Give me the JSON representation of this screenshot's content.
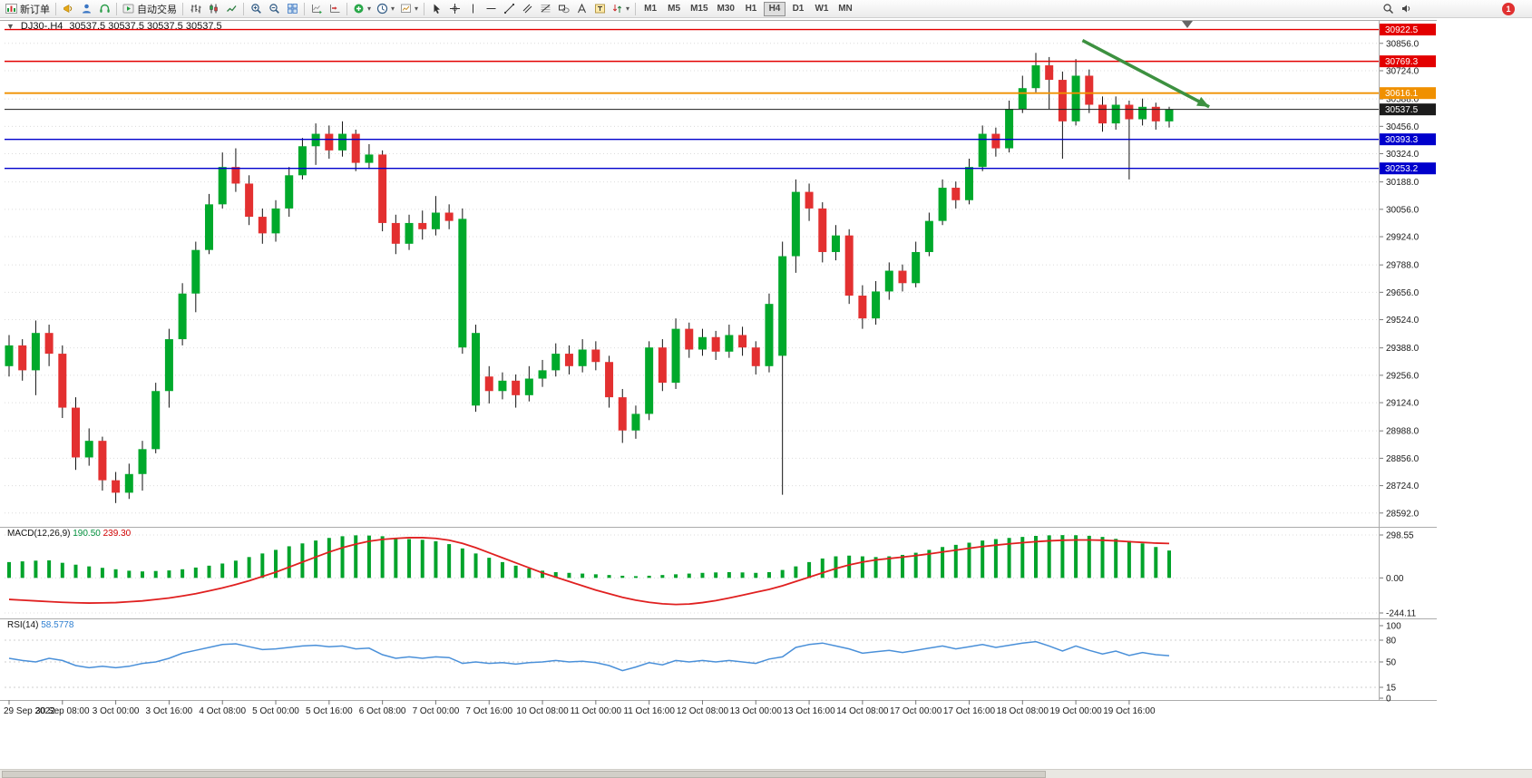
{
  "toolbar": {
    "new_order": "新订单",
    "auto_trading": "自动交易",
    "timeframes": [
      "M1",
      "M5",
      "M15",
      "M30",
      "H1",
      "H4",
      "D1",
      "W1",
      "MN"
    ],
    "active_timeframe": "H4",
    "badge_count": "1"
  },
  "icons": {
    "caret": "▾",
    "collapse": "▼"
  },
  "chart": {
    "title": "DJ30-.H4",
    "ohlc": "30537.5 30537.5 30537.5 30537.5",
    "price_max": 30960,
    "price_min": 28543,
    "axis_ticks": [
      30856,
      30724,
      30588,
      30456,
      30324,
      30188,
      30056,
      29924,
      29788,
      29656,
      29524,
      29388,
      29256,
      29124,
      28988,
      28856,
      28724,
      28592
    ],
    "levels": [
      {
        "label": "30922.5",
        "price": 30922.5,
        "color": "#e30000",
        "width": 1.4
      },
      {
        "label": "30769.3",
        "price": 30769.3,
        "color": "#e30000",
        "width": 1.4
      },
      {
        "label": "30616.1",
        "price": 30616.1,
        "color": "#f09000",
        "width": 1.8
      },
      {
        "label": "30537.5",
        "price": 30537.5,
        "color": "#1c1c1c",
        "width": 1,
        "current": true
      },
      {
        "label": "30393.3",
        "price": 30393.3,
        "color": "#0000cc",
        "width": 1.4
      },
      {
        "label": "30253.2",
        "price": 30253.2,
        "color": "#0000cc",
        "width": 1.4
      }
    ],
    "arrow": {
      "from_index": 80.5,
      "from_price": 30870,
      "to_index": 90,
      "to_price": 30550,
      "color": "#3d9140"
    }
  },
  "macd": {
    "label": "MACD(12,26,9)",
    "main_value": "190.50",
    "signal_value": "239.30",
    "ticks": [
      "298.55",
      "0.00",
      "-244.11"
    ],
    "tick_values": [
      298.55,
      0,
      -244.11
    ]
  },
  "rsi": {
    "label": "RSI(14)",
    "value": "58.5778",
    "ticks": [
      "100",
      "80",
      "50",
      "15",
      "0"
    ],
    "tick_values": [
      100,
      80,
      50,
      15,
      0
    ]
  },
  "chart_data": {
    "type": "candlestick",
    "symbol": "DJ30-",
    "timeframe": "H4",
    "up_color": "#00a92b",
    "down_color": "#e33030",
    "x_labels": [
      "29 Sep 2022",
      "30 Sep 08:00",
      "3 Oct 00:00",
      "3 Oct 16:00",
      "4 Oct 08:00",
      "5 Oct 00:00",
      "5 Oct 16:00",
      "6 Oct 08:00",
      "7 Oct 00:00",
      "7 Oct 16:00",
      "10 Oct 08:00",
      "11 Oct 00:00",
      "11 Oct 16:00",
      "12 Oct 08:00",
      "13 Oct 00:00",
      "13 Oct 16:00",
      "14 Oct 08:00",
      "17 Oct 00:00",
      "17 Oct 16:00",
      "18 Oct 08:00",
      "19 Oct 00:00",
      "19 Oct 16:00"
    ],
    "candles": [
      [
        29300,
        29450,
        29250,
        29400
      ],
      [
        29400,
        29430,
        29230,
        29280
      ],
      [
        29280,
        29520,
        29160,
        29460
      ],
      [
        29460,
        29500,
        29300,
        29360
      ],
      [
        29360,
        29400,
        29050,
        29100
      ],
      [
        29100,
        29150,
        28800,
        28860
      ],
      [
        28860,
        29000,
        28820,
        28940
      ],
      [
        28940,
        28960,
        28700,
        28750
      ],
      [
        28750,
        28790,
        28640,
        28690
      ],
      [
        28690,
        28830,
        28660,
        28780
      ],
      [
        28780,
        28940,
        28700,
        28900
      ],
      [
        28900,
        29220,
        28880,
        29180
      ],
      [
        29180,
        29480,
        29100,
        29430
      ],
      [
        29430,
        29700,
        29400,
        29650
      ],
      [
        29650,
        29900,
        29560,
        29860
      ],
      [
        29860,
        30130,
        29840,
        30080
      ],
      [
        30080,
        30330,
        30060,
        30260
      ],
      [
        30260,
        30350,
        30140,
        30180
      ],
      [
        30180,
        30220,
        29980,
        30020
      ],
      [
        30020,
        30060,
        29890,
        29940
      ],
      [
        29940,
        30100,
        29900,
        30060
      ],
      [
        30060,
        30260,
        30020,
        30220
      ],
      [
        30220,
        30400,
        30200,
        30360
      ],
      [
        30360,
        30470,
        30270,
        30420
      ],
      [
        30420,
        30460,
        30300,
        30340
      ],
      [
        30340,
        30480,
        30310,
        30420
      ],
      [
        30420,
        30440,
        30240,
        30280
      ],
      [
        30280,
        30370,
        30250,
        30320
      ],
      [
        30320,
        30340,
        29950,
        29990
      ],
      [
        29990,
        30030,
        29840,
        29890
      ],
      [
        29890,
        30030,
        29860,
        29990
      ],
      [
        29990,
        30050,
        29910,
        29960
      ],
      [
        29960,
        30120,
        29930,
        30040
      ],
      [
        30040,
        30080,
        29960,
        30000
      ],
      [
        29390,
        30060,
        29360,
        30010
      ],
      [
        29110,
        29500,
        29080,
        29460
      ],
      [
        29250,
        29300,
        29120,
        29180
      ],
      [
        29180,
        29270,
        29140,
        29230
      ],
      [
        29230,
        29260,
        29100,
        29160
      ],
      [
        29160,
        29300,
        29130,
        29240
      ],
      [
        29240,
        29330,
        29200,
        29280
      ],
      [
        29280,
        29410,
        29250,
        29360
      ],
      [
        29360,
        29400,
        29260,
        29300
      ],
      [
        29300,
        29430,
        29270,
        29380
      ],
      [
        29380,
        29420,
        29280,
        29320
      ],
      [
        29320,
        29350,
        29100,
        29150
      ],
      [
        29150,
        29190,
        28930,
        28990
      ],
      [
        28990,
        29110,
        28950,
        29070
      ],
      [
        29070,
        29420,
        29040,
        29390
      ],
      [
        29390,
        29430,
        29180,
        29220
      ],
      [
        29220,
        29530,
        29190,
        29480
      ],
      [
        29480,
        29510,
        29340,
        29380
      ],
      [
        29380,
        29480,
        29350,
        29440
      ],
      [
        29440,
        29470,
        29330,
        29370
      ],
      [
        29370,
        29500,
        29340,
        29450
      ],
      [
        29450,
        29490,
        29350,
        29390
      ],
      [
        29390,
        29420,
        29260,
        29300
      ],
      [
        29300,
        29650,
        29270,
        29600
      ],
      [
        29350,
        29900,
        28680,
        29830
      ],
      [
        29830,
        30200,
        29750,
        30140
      ],
      [
        30140,
        30180,
        30000,
        30060
      ],
      [
        30060,
        30090,
        29800,
        29850
      ],
      [
        29850,
        29980,
        29810,
        29930
      ],
      [
        29930,
        29960,
        29600,
        29640
      ],
      [
        29640,
        29690,
        29480,
        29530
      ],
      [
        29530,
        29710,
        29500,
        29660
      ],
      [
        29660,
        29800,
        29620,
        29760
      ],
      [
        29760,
        29790,
        29660,
        29700
      ],
      [
        29700,
        29900,
        29680,
        29850
      ],
      [
        29850,
        30040,
        29830,
        30000
      ],
      [
        30000,
        30200,
        29980,
        30160
      ],
      [
        30160,
        30190,
        30060,
        30100
      ],
      [
        30100,
        30300,
        30080,
        30260
      ],
      [
        30260,
        30460,
        30240,
        30420
      ],
      [
        30420,
        30450,
        30310,
        30350
      ],
      [
        30350,
        30580,
        30330,
        30540
      ],
      [
        30540,
        30700,
        30520,
        30640
      ],
      [
        30640,
        30810,
        30620,
        30750
      ],
      [
        30750,
        30790,
        30540,
        30680
      ],
      [
        30680,
        30720,
        30300,
        30480
      ],
      [
        30480,
        30780,
        30460,
        30700
      ],
      [
        30700,
        30730,
        30520,
        30560
      ],
      [
        30560,
        30600,
        30430,
        30470
      ],
      [
        30470,
        30600,
        30440,
        30560
      ],
      [
        30560,
        30580,
        30200,
        30490
      ],
      [
        30490,
        30590,
        30460,
        30550
      ],
      [
        30550,
        30570,
        30440,
        30480
      ],
      [
        30480,
        30550,
        30450,
        30537.5
      ]
    ],
    "indicators": [
      {
        "name": "MACD",
        "params": [
          12,
          26,
          9
        ],
        "histogram_color": "#00a32a",
        "signal_color": "#e02020",
        "histogram": [
          110,
          115,
          120,
          122,
          105,
          92,
          80,
          70,
          60,
          50,
          45,
          48,
          52,
          60,
          72,
          85,
          100,
          120,
          145,
          170,
          195,
          220,
          240,
          260,
          278,
          290,
          296,
          295,
          290,
          280,
          270,
          265,
          255,
          235,
          205,
          170,
          140,
          110,
          85,
          65,
          50,
          40,
          35,
          30,
          25,
          20,
          15,
          12,
          15,
          20,
          25,
          30,
          35,
          38,
          40,
          38,
          35,
          40,
          55,
          80,
          110,
          135,
          150,
          155,
          150,
          145,
          150,
          160,
          175,
          195,
          215,
          230,
          245,
          260,
          270,
          278,
          285,
          292,
          296,
          298,
          297,
          293,
          285,
          272,
          258,
          240,
          215,
          190.5
        ],
        "signal": [
          -150,
          -155,
          -160,
          -165,
          -170,
          -173,
          -175,
          -174,
          -172,
          -166,
          -160,
          -150,
          -140,
          -126,
          -110,
          -90,
          -70,
          -46,
          -20,
          10,
          40,
          75,
          110,
          145,
          180,
          210,
          235,
          255,
          268,
          275,
          280,
          280,
          275,
          262,
          240,
          210,
          175,
          140,
          105,
          70,
          35,
          5,
          -25,
          -55,
          -85,
          -110,
          -135,
          -155,
          -170,
          -180,
          -185,
          -182,
          -172,
          -158,
          -140,
          -120,
          -100,
          -80,
          -55,
          -25,
          5,
          35,
          65,
          90,
          110,
          125,
          135,
          145,
          155,
          167,
          180,
          193,
          206,
          218,
          228,
          237,
          245,
          252,
          258,
          262,
          264,
          264,
          262,
          258,
          252,
          247,
          242,
          239.3
        ]
      },
      {
        "name": "RSI",
        "params": [
          14
        ],
        "color": "#4a90d9",
        "values": [
          55,
          52,
          50,
          55,
          52,
          45,
          42,
          44,
          42,
          44,
          48,
          50,
          55,
          62,
          66,
          70,
          74,
          75,
          71,
          67,
          68,
          70,
          72,
          73,
          71,
          72,
          68,
          69,
          60,
          55,
          57,
          55,
          57,
          56,
          48,
          50,
          48,
          49,
          47,
          49,
          50,
          52,
          50,
          51,
          49,
          45,
          38,
          43,
          49,
          46,
          52,
          50,
          52,
          50,
          52,
          50,
          48,
          54,
          57,
          70,
          74,
          76,
          72,
          68,
          62,
          64,
          66,
          63,
          66,
          69,
          72,
          68,
          71,
          74,
          70,
          73,
          76,
          78,
          72,
          65,
          72,
          66,
          61,
          65,
          59,
          63,
          60,
          58.58
        ]
      }
    ]
  }
}
